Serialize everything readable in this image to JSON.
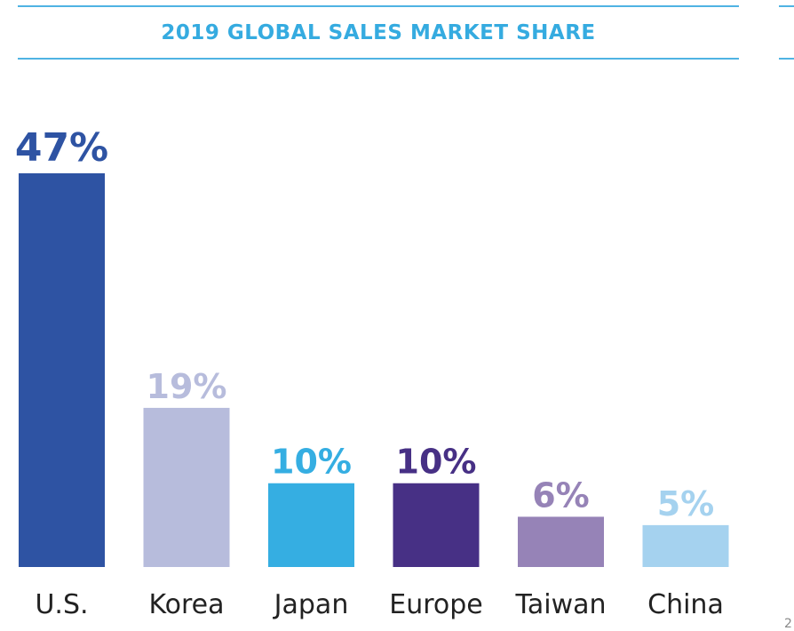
{
  "chart_data": {
    "type": "bar",
    "title": "2019 GLOBAL SALES MARKET SHARE",
    "categories": [
      "U.S.",
      "Korea",
      "Japan",
      "Europe",
      "Taiwan",
      "China"
    ],
    "values": [
      47,
      19,
      10,
      10,
      6,
      5
    ],
    "labels": [
      "47%",
      "19%",
      "10%",
      "10%",
      "6%",
      "5%"
    ],
    "colors": [
      "#2e53a3",
      "#b7bcdc",
      "#35aee2",
      "#473085",
      "#9683b7",
      "#a5d2ef"
    ],
    "xlabel": "",
    "ylabel": "",
    "ylim": [
      0,
      47
    ],
    "grid": false,
    "legend": "none"
  },
  "page": {
    "edge_mark": "2"
  }
}
